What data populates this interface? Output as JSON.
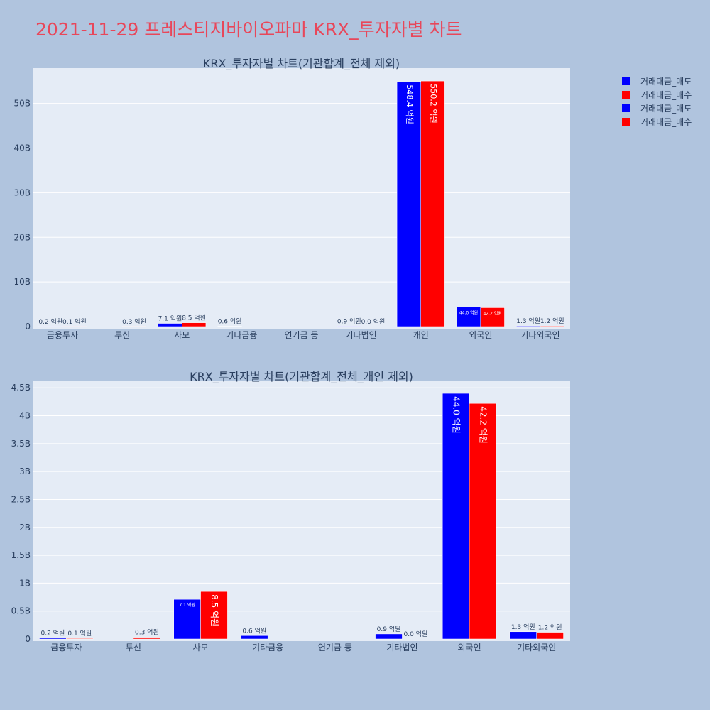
{
  "page_title": "2021-11-29 프레스티지바이오파마 KRX_투자자별 차트",
  "colors": {
    "sell": "#0000ff",
    "buy": "#ff0000",
    "plot_bg": "#e5ecf6",
    "page_bg": "#b0c4de"
  },
  "legend": [
    {
      "name": "거래대금_매도",
      "color": "#0000ff"
    },
    {
      "name": "거래대금_매수",
      "color": "#ff0000"
    },
    {
      "name": "거래대금_매도",
      "color": "#0000ff"
    },
    {
      "name": "거래대금_매수",
      "color": "#ff0000"
    }
  ],
  "chart_data": [
    {
      "type": "bar",
      "title": "KRX_투자자별 차트(기관합계_전체 제외)",
      "categories": [
        "금융투자",
        "투신",
        "사모",
        "기타금융",
        "연기금 등",
        "기타법인",
        "개인",
        "외국인",
        "기타외국인"
      ],
      "series": [
        {
          "name": "거래대금_매도",
          "values": [
            0.02,
            0,
            0.71,
            0.06,
            0,
            0.09,
            54.84,
            4.4,
            0.13
          ],
          "labels": [
            "0.2 억원",
            "",
            "7.1 억원",
            "0.6 억원",
            "",
            "0.9 억원",
            "548.4 억원",
            "44.0 억원",
            "1.3 억원"
          ]
        },
        {
          "name": "거래대금_매수",
          "values": [
            0.01,
            0.03,
            0.85,
            0,
            0,
            0.0,
            55.02,
            4.22,
            0.12
          ],
          "labels": [
            "0.1 억원",
            "0.3 억원",
            "8.5 억원",
            "",
            "",
            "0.0 억원",
            "550.2 억원",
            "42.2 억원",
            "1.2 억원"
          ]
        }
      ],
      "yticks": [
        "0",
        "10B",
        "20B",
        "30B",
        "40B",
        "50B"
      ],
      "ytick_values": [
        0,
        10,
        20,
        30,
        40,
        50
      ],
      "ylim": [
        0,
        57.9
      ]
    },
    {
      "type": "bar",
      "title": "KRX_투자자별 차트(기관합계_전체_개인 제외)",
      "categories": [
        "금융투자",
        "투신",
        "사모",
        "기타금융",
        "연기금 등",
        "기타법인",
        "외국인",
        "기타외국인"
      ],
      "series": [
        {
          "name": "거래대금_매도",
          "values": [
            0.02,
            0,
            0.71,
            0.06,
            0,
            0.09,
            4.4,
            0.13
          ],
          "labels": [
            "0.2 억원",
            "",
            "7.1 억원",
            "0.6 억원",
            "",
            "0.9 억원",
            "44.0 억원",
            "1.3 억원"
          ]
        },
        {
          "name": "거래대금_매수",
          "values": [
            0.01,
            0.03,
            0.85,
            0,
            0,
            0.0,
            4.22,
            0.12
          ],
          "labels": [
            "0.1 억원",
            "0.3 억원",
            "8.5 억원",
            "",
            "",
            "0.0 억원",
            "42.2 억원",
            "1.2 억원"
          ]
        }
      ],
      "yticks": [
        "0",
        "0.5B",
        "1B",
        "1.5B",
        "2B",
        "2.5B",
        "3B",
        "3.5B",
        "4B",
        "4.5B"
      ],
      "ytick_values": [
        0,
        0.5,
        1,
        1.5,
        2,
        2.5,
        3,
        3.5,
        4,
        4.5
      ],
      "ylim": [
        0,
        4.63
      ]
    }
  ]
}
